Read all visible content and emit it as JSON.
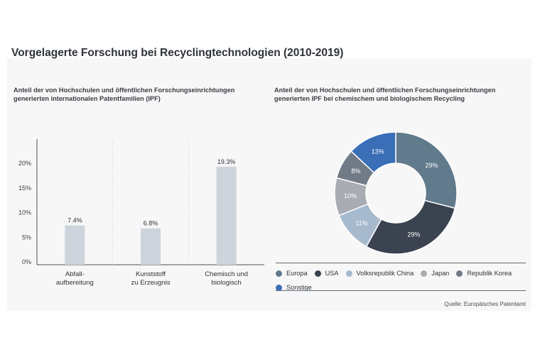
{
  "title": "Vorgelagerte Forschung bei Recyclingtechnologien (2010-2019)",
  "source": "Quelle: Europäisches Patentamt",
  "chart_data": [
    {
      "type": "bar",
      "title": "Anteil der von Hochschulen und öffentlichen Forschungseinrichtungen generierten internationalen Patentfamilien (IPF)",
      "categories": [
        "Abfall-\naufbereitung",
        "Kunststoff\nzu Erzeugnis",
        "Chemisch und\nbiologisch"
      ],
      "values": [
        7.4,
        6.8,
        19.3
      ],
      "data_labels": [
        "7.4%",
        "6.8%",
        "19.3%"
      ],
      "yticks": [
        0,
        5,
        10,
        15,
        20
      ],
      "ytick_labels": [
        "0%",
        "5%",
        "10%",
        "15%",
        "20%"
      ],
      "ylim": [
        0,
        25
      ],
      "grid": "vertical separators",
      "color": "#cdd4dc"
    },
    {
      "type": "pie",
      "title": "Anteil der von Hochschulen und öffentlichen Forschungseinrichtungen generierten IPF bei chemischem und biologischem Recycling",
      "donut": true,
      "slices": [
        {
          "label": "Europa",
          "value": 29,
          "text": "29%",
          "color": "#617a8c"
        },
        {
          "label": "USA",
          "value": 29,
          "text": "29%",
          "color": "#3b4351"
        },
        {
          "label": "Volksrepublik China",
          "value": 11,
          "text": "11%",
          "color": "#a6b9cd"
        },
        {
          "label": "Japan",
          "value": 10,
          "text": "10%",
          "color": "#a9adb3"
        },
        {
          "label": "Republik Korea",
          "value": 8,
          "text": "8%",
          "color": "#717b87"
        },
        {
          "label": "Sonstige",
          "value": 13,
          "text": "13%",
          "color": "#3a6fb7"
        }
      ],
      "legend_position": "bottom"
    }
  ]
}
